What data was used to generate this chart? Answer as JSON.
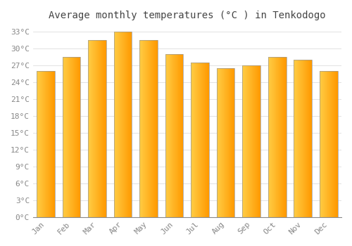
{
  "title": "Average monthly temperatures (°C ) in Tenkodogo",
  "months": [
    "Jan",
    "Feb",
    "Mar",
    "Apr",
    "May",
    "Jun",
    "Jul",
    "Aug",
    "Sep",
    "Oct",
    "Nov",
    "Dec"
  ],
  "values": [
    26,
    28.5,
    31.5,
    33,
    31.5,
    29,
    27.5,
    26.5,
    27,
    28.5,
    28,
    26
  ],
  "bar_color_left": "#FFCC44",
  "bar_color_right": "#FF9900",
  "bar_edge_color": "#999999",
  "background_color": "#FFFFFF",
  "plot_bg_color": "#FFFFFF",
  "grid_color": "#DDDDDD",
  "title_color": "#444444",
  "tick_label_color": "#888888",
  "ylim": [
    0,
    34
  ],
  "yticks": [
    0,
    3,
    6,
    9,
    12,
    15,
    18,
    21,
    24,
    27,
    30,
    33
  ],
  "ytick_labels": [
    "0°C",
    "3°C",
    "6°C",
    "9°C",
    "12°C",
    "15°C",
    "18°C",
    "21°C",
    "24°C",
    "27°C",
    "30°C",
    "33°C"
  ],
  "title_fontsize": 10,
  "tick_fontsize": 8,
  "figsize": [
    5.0,
    3.5
  ],
  "dpi": 100,
  "bar_width": 0.7
}
